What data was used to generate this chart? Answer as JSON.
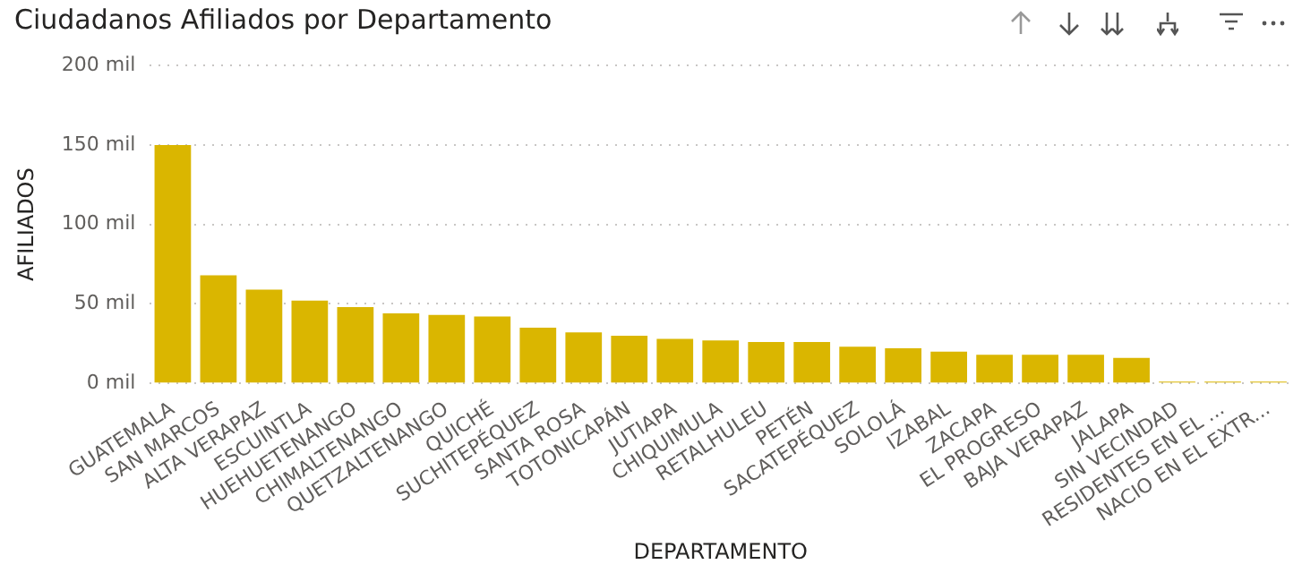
{
  "chart_data": {
    "type": "bar",
    "title": "Ciudadanos Afiliados por Departamento",
    "xlabel": "DEPARTAMENTO",
    "ylabel": "AFILIADOS",
    "categories": [
      "GUATEMALA",
      "SAN MARCOS",
      "ALTA VERAPAZ",
      "ESCUINTLA",
      "HUEHUETENANGO",
      "CHIMALTENANGO",
      "QUETZALTENANGO",
      "QUICHÉ",
      "SUCHITEPÉQUEZ",
      "SANTA ROSA",
      "TOTONICAPÁN",
      "JUTIAPA",
      "CHIQUIMULA",
      "RETALHULEU",
      "PETÉN",
      "SACATEPÉQUEZ",
      "SOLOLÁ",
      "IZABAL",
      "ZACAPA",
      "EL PROGRESO",
      "BAJA VERAPAZ",
      "JALAPA",
      "SIN VECINDAD",
      "RESIDENTES EN EL ...",
      "NACIO EN EL EXTR..."
    ],
    "values": [
      150,
      68,
      59,
      52,
      48,
      44,
      43,
      42,
      35,
      32,
      30,
      28,
      27,
      26,
      26,
      23,
      22,
      20,
      18,
      18,
      18,
      16,
      1,
      1,
      1
    ],
    "color": "#dab600",
    "ylim": [
      0,
      200
    ],
    "yticks": [
      {
        "value": 0,
        "label": "0 mil"
      },
      {
        "value": 50,
        "label": "50 mil"
      },
      {
        "value": 100,
        "label": "100 mil"
      },
      {
        "value": 150,
        "label": "150 mil"
      },
      {
        "value": 200,
        "label": "200 mil"
      }
    ],
    "grid": "y",
    "legend": false
  }
}
